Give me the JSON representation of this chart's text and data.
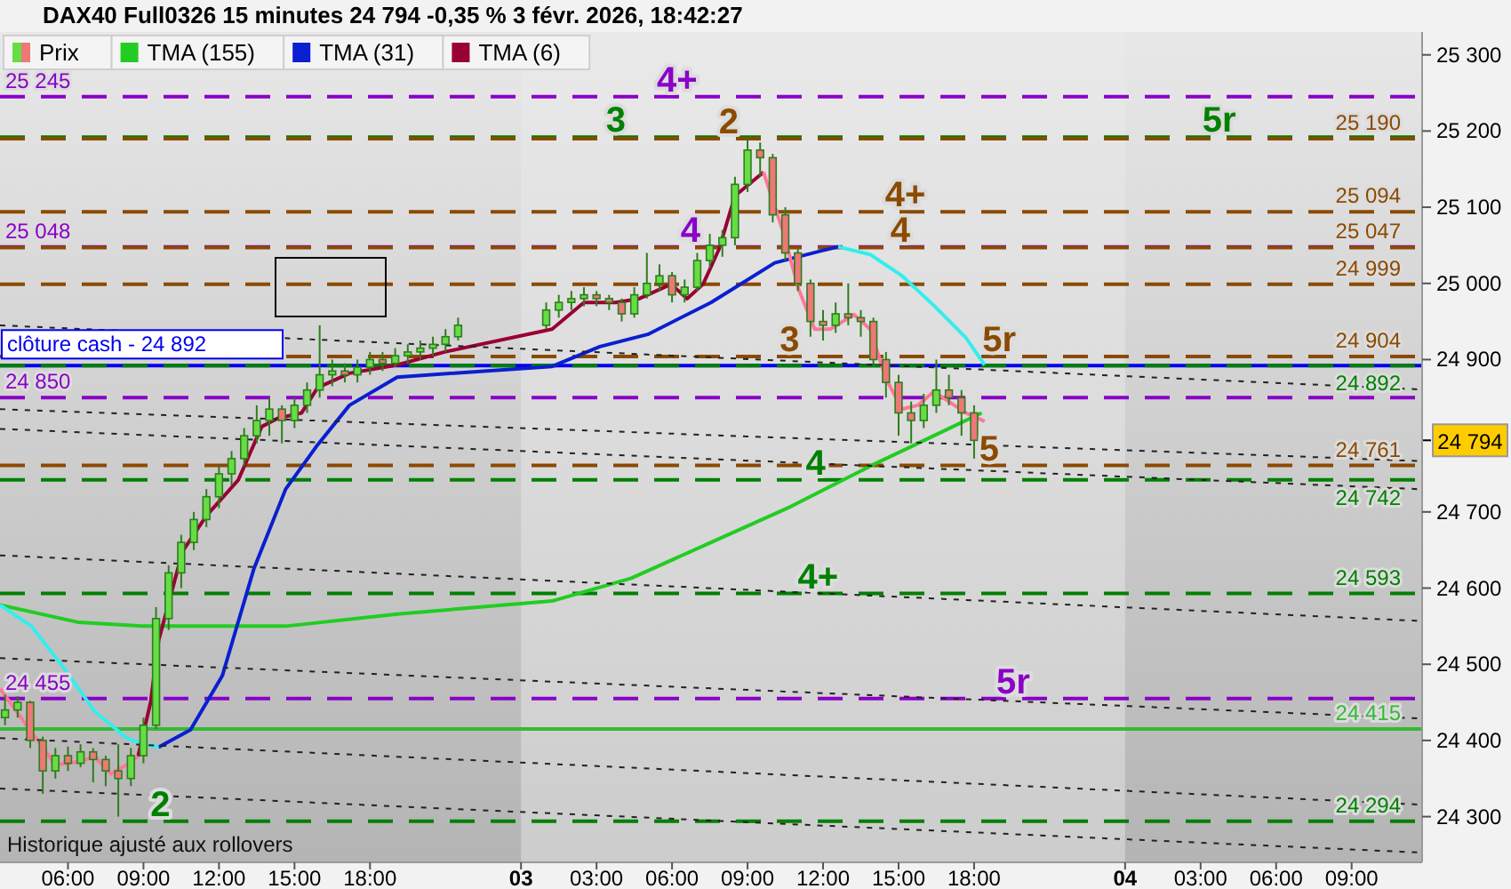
{
  "chart_data": {
    "type": "candlestick",
    "title": "DAX40 Full0326 15 minutes 24 794 -0,35 % 3 févr. 2026, 18:42:27",
    "legend": "top left",
    "marker": "none",
    "grid": false,
    "xlim": [
      "2026-02-02T03:18",
      "2026-02-04T11:48"
    ],
    "ylim": [
      24240,
      25330
    ],
    "xticks": [
      {
        "value": "2026-02-02T06:00",
        "label": "06:00"
      },
      {
        "value": "2026-02-02T09:00",
        "label": "09:00"
      },
      {
        "value": "2026-02-02T12:00",
        "label": "12:00"
      },
      {
        "value": "2026-02-02T15:00",
        "label": "15:00"
      },
      {
        "value": "2026-02-02T18:00",
        "label": "18:00"
      },
      {
        "value": "2026-02-03",
        "label": "03"
      },
      {
        "value": "2026-02-03T03:00",
        "label": "03:00"
      },
      {
        "value": "2026-02-03T06:00",
        "label": "06:00"
      },
      {
        "value": "2026-02-03T09:00",
        "label": "09:00"
      },
      {
        "value": "2026-02-03T12:00",
        "label": "12:00"
      },
      {
        "value": "2026-02-03T15:00",
        "label": "15:00"
      },
      {
        "value": "2026-02-03T18:00",
        "label": "18:00"
      },
      {
        "value": "2026-02-04",
        "label": "04"
      },
      {
        "value": "2026-02-04T03:00",
        "label": "03:00"
      },
      {
        "value": "2026-02-04T06:00",
        "label": "06:00"
      },
      {
        "value": "2026-02-04T09:00",
        "label": "09:00"
      }
    ],
    "yticks": [
      {
        "value": 24300,
        "label": "24 300"
      },
      {
        "value": 24400,
        "label": "24 400"
      },
      {
        "value": 24500,
        "label": "24 500"
      },
      {
        "value": 24600,
        "label": "24 600"
      },
      {
        "value": 24700,
        "label": "24 700"
      },
      {
        "value": 24900,
        "label": "24 900"
      },
      {
        "value": 25000,
        "label": "25 000"
      },
      {
        "value": 25100,
        "label": "25 100"
      },
      {
        "value": 25200,
        "label": "25 200"
      },
      {
        "value": 25300,
        "label": "25 300"
      }
    ],
    "bands": [
      {
        "axis": "x",
        "from": "2026-02-03",
        "to": "2026-02-04",
        "color": "#ececec"
      }
    ],
    "ref_lines": [
      {
        "axis": "y",
        "value": 25245,
        "label": "25 245",
        "color": "#8a00c8",
        "line_style": "dashed"
      },
      {
        "axis": "y",
        "value": 25048,
        "label": "25 048",
        "color": "#8a00c8",
        "line_style": "dashed"
      },
      {
        "axis": "y",
        "value": 24850,
        "label": "24 850",
        "color": "#8a00c8",
        "line_style": "dashed"
      },
      {
        "axis": "y",
        "value": 24455,
        "label": "24 455",
        "color": "#8a00c8",
        "line_style": "dashed"
      },
      {
        "axis": "y",
        "value": 24892,
        "label": "clôture cash -  24 892",
        "color": "#0000ee",
        "line_style": "solid"
      },
      {
        "axis": "y",
        "value": 24415,
        "label": "24 415",
        "color": "#33bb33",
        "line_style": "solid"
      },
      {
        "axis": "y",
        "value": 25192,
        "color": "#008000",
        "line_style": "dashed"
      },
      {
        "axis": "y",
        "value": 24892,
        "label": "24 892",
        "color": "#008000",
        "line_style": "dashed"
      },
      {
        "axis": "y",
        "value": 24742,
        "label": "24 742",
        "color": "#008000",
        "line_style": "dashed"
      },
      {
        "axis": "y",
        "value": 24593,
        "label": "24 593",
        "color": "#008000",
        "line_style": "dashed"
      },
      {
        "axis": "y",
        "value": 24294,
        "label": "24 294",
        "color": "#008000",
        "line_style": "dashed"
      },
      {
        "axis": "y",
        "value": 25190,
        "label": "25 190",
        "color": "#8b4a00",
        "line_style": "dashed"
      },
      {
        "axis": "y",
        "value": 25094,
        "label": "25 094",
        "color": "#8b4a00",
        "line_style": "dashed"
      },
      {
        "axis": "y",
        "value": 25047,
        "label": "25 047",
        "color": "#8b4a00",
        "line_style": "dashed"
      },
      {
        "axis": "y",
        "value": 24999,
        "label": "24 999",
        "color": "#8b4a00",
        "line_style": "dashed"
      },
      {
        "axis": "y",
        "value": 24904,
        "label": "24 904",
        "color": "#8b4a00",
        "line_style": "dashed"
      },
      {
        "axis": "y",
        "value": 24761,
        "label": "24 761",
        "color": "#8b4a00",
        "line_style": "dashed"
      }
    ],
    "annotations": [
      {
        "text": "4+",
        "x": "2026-02-03T06:12",
        "y": 25245
      },
      {
        "text": "3",
        "x": "2026-02-03T03:46",
        "y": 25192
      },
      {
        "text": "2",
        "x": "2026-02-03T08:15",
        "y": 25190
      },
      {
        "text": "5r",
        "x": "2026-02-04T03:44",
        "y": 25192
      },
      {
        "text": "4+",
        "x": "2026-02-03T15:16",
        "y": 25094
      },
      {
        "text": "4",
        "x": "2026-02-03T15:04",
        "y": 25047
      },
      {
        "text": "4",
        "x": "2026-02-03T06:44",
        "y": 25048
      },
      {
        "text": "3",
        "x": "2026-02-03T10:40",
        "y": 24904
      },
      {
        "text": "5r",
        "x": "2026-02-03T19:00",
        "y": 24904
      },
      {
        "text": "4",
        "x": "2026-02-03T11:42",
        "y": 24742
      },
      {
        "text": "5",
        "x": "2026-02-03T18:36",
        "y": 24761
      },
      {
        "text": "4+",
        "x": "2026-02-03T11:48",
        "y": 24593
      },
      {
        "text": "5r",
        "x": "2026-02-03T19:33",
        "y": 24455
      },
      {
        "text": "2",
        "x": "2026-02-02T09:40",
        "y": 24294
      },
      "24 794",
      "Historique ajusté aux rollovers"
    ],
    "series": [
      {
        "type": "candlestick",
        "name": "Prix",
        "color": "#2e7d1e",
        "x": [
          "2026-02-02T03:30",
          "2026-02-02T04:00",
          "2026-02-02T04:30",
          "2026-02-02T05:00",
          "2026-02-02T05:30",
          "2026-02-02T06:00",
          "2026-02-02T06:30",
          "2026-02-02T07:00",
          "2026-02-02T07:30",
          "2026-02-02T08:00",
          "2026-02-02T08:30",
          "2026-02-02T09:00",
          "2026-02-02T09:30",
          "2026-02-02T10:00",
          "2026-02-02T10:30",
          "2026-02-02T11:00",
          "2026-02-02T11:30",
          "2026-02-02T12:00",
          "2026-02-02T12:30",
          "2026-02-02T13:00",
          "2026-02-02T13:30",
          "2026-02-02T14:00",
          "2026-02-02T14:30",
          "2026-02-02T15:00",
          "2026-02-02T15:30",
          "2026-02-02T16:00",
          "2026-02-02T16:30",
          "2026-02-02T17:00",
          "2026-02-02T17:30",
          "2026-02-02T18:00",
          "2026-02-02T18:30",
          "2026-02-02T19:00",
          "2026-02-02T19:30",
          "2026-02-02T20:00",
          "2026-02-02T20:30",
          "2026-02-02T21:00",
          "2026-02-02T21:30",
          "2026-02-03T01:00",
          "2026-02-03T01:30",
          "2026-02-03T02:00",
          "2026-02-03T02:30",
          "2026-02-03T03:00",
          "2026-02-03T03:30",
          "2026-02-03T04:00",
          "2026-02-03T04:30",
          "2026-02-03T05:00",
          "2026-02-03T05:30",
          "2026-02-03T06:00",
          "2026-02-03T06:30",
          "2026-02-03T07:00",
          "2026-02-03T07:30",
          "2026-02-03T08:00",
          "2026-02-03T08:30",
          "2026-02-03T09:00",
          "2026-02-03T09:30",
          "2026-02-03T10:00",
          "2026-02-03T10:30",
          "2026-02-03T11:00",
          "2026-02-03T11:30",
          "2026-02-03T12:00",
          "2026-02-03T12:30",
          "2026-02-03T13:00",
          "2026-02-03T13:30",
          "2026-02-03T14:00",
          "2026-02-03T14:30",
          "2026-02-03T15:00",
          "2026-02-03T15:30",
          "2026-02-03T16:00",
          "2026-02-03T16:30",
          "2026-02-03T17:00",
          "2026-02-03T17:30",
          "2026-02-03T18:00"
        ],
        "ohlc": [
          [
            24430,
            24460,
            24420,
            24440
          ],
          [
            24440,
            24458,
            24430,
            24450
          ],
          [
            24450,
            24452,
            24390,
            24400
          ],
          [
            24400,
            24405,
            24330,
            24360
          ],
          [
            24360,
            24390,
            24350,
            24380
          ],
          [
            24380,
            24392,
            24360,
            24370
          ],
          [
            24370,
            24395,
            24365,
            24385
          ],
          [
            24385,
            24390,
            24345,
            24375
          ],
          [
            24375,
            24380,
            24340,
            24360
          ],
          [
            24360,
            24395,
            24300,
            24350
          ],
          [
            24350,
            24390,
            24340,
            24380
          ],
          [
            24380,
            24430,
            24370,
            24420
          ],
          [
            24420,
            24575,
            24415,
            24560
          ],
          [
            24560,
            24630,
            24545,
            24620
          ],
          [
            24620,
            24670,
            24600,
            24660
          ],
          [
            24660,
            24700,
            24650,
            24690
          ],
          [
            24690,
            24730,
            24680,
            24720
          ],
          [
            24720,
            24760,
            24705,
            24750
          ],
          [
            24750,
            24780,
            24735,
            24770
          ],
          [
            24770,
            24810,
            24760,
            24800
          ],
          [
            24800,
            24840,
            24790,
            24820
          ],
          [
            24820,
            24850,
            24800,
            24835
          ],
          [
            24835,
            24840,
            24790,
            24820
          ],
          [
            24820,
            24850,
            24810,
            24840
          ],
          [
            24840,
            24870,
            24830,
            24860
          ],
          [
            24860,
            24945,
            24850,
            24880
          ],
          [
            24880,
            24900,
            24865,
            24885
          ],
          [
            24885,
            24895,
            24870,
            24880
          ],
          [
            24880,
            24900,
            24870,
            24890
          ],
          [
            24890,
            24910,
            24880,
            24900
          ],
          [
            24900,
            24910,
            24885,
            24895
          ],
          [
            24895,
            24915,
            24890,
            24905
          ],
          [
            24905,
            24920,
            24895,
            24910
          ],
          [
            24910,
            24925,
            24900,
            24915
          ],
          [
            24915,
            24930,
            24905,
            24920
          ],
          [
            24920,
            24940,
            24910,
            24930
          ],
          [
            24930,
            24955,
            24925,
            24945
          ],
          [
            24945,
            24975,
            24940,
            24965
          ],
          [
            24965,
            24985,
            24955,
            24975
          ],
          [
            24975,
            24990,
            24965,
            24980
          ],
          [
            24980,
            24995,
            24970,
            24985
          ],
          [
            24985,
            24990,
            24970,
            24980
          ],
          [
            24980,
            24985,
            24965,
            24975
          ],
          [
            24975,
            24980,
            24950,
            24960
          ],
          [
            24960,
            24995,
            24955,
            24985
          ],
          [
            24985,
            25040,
            24980,
            25000
          ],
          [
            25000,
            25025,
            24990,
            25010
          ],
          [
            25010,
            25015,
            24975,
            24985
          ],
          [
            24985,
            25005,
            24975,
            24995
          ],
          [
            24995,
            25040,
            24990,
            25030
          ],
          [
            25030,
            25065,
            25020,
            25050
          ],
          [
            25050,
            25070,
            25035,
            25060
          ],
          [
            25060,
            25140,
            25050,
            25130
          ],
          [
            25130,
            25190,
            25120,
            25175
          ],
          [
            25175,
            25185,
            25140,
            25165
          ],
          [
            25165,
            25170,
            25080,
            25090
          ],
          [
            25090,
            25100,
            25030,
            25040
          ],
          [
            25040,
            25045,
            24990,
            25000
          ],
          [
            25000,
            25005,
            24930,
            24950
          ],
          [
            24950,
            24965,
            24925,
            24945
          ],
          [
            24945,
            24975,
            24935,
            24960
          ],
          [
            24960,
            25000,
            24945,
            24955
          ],
          [
            24955,
            24965,
            24930,
            24950
          ],
          [
            24950,
            24955,
            24890,
            24900
          ],
          [
            24900,
            24910,
            24850,
            24870
          ],
          [
            24870,
            24880,
            24800,
            24830
          ],
          [
            24830,
            24845,
            24790,
            24820
          ],
          [
            24820,
            24855,
            24810,
            24840
          ],
          [
            24840,
            24900,
            24830,
            24860
          ],
          [
            24860,
            24880,
            24840,
            24850
          ],
          [
            24850,
            24860,
            24800,
            24830
          ],
          [
            24830,
            24840,
            24770,
            24794
          ]
        ]
      },
      {
        "type": "line",
        "name": "TMA (155)",
        "color": "#22cc22",
        "x": [
          "2026-02-02T03:18",
          "2026-02-02T06:26",
          "2026-02-02T08:58",
          "2026-02-02T14:39",
          "2026-02-02T19:05",
          "2026-02-03T01:14",
          "2026-02-03T04:23",
          "2026-02-03T07:33",
          "2026-02-03T10:43",
          "2026-02-03T13:52",
          "2026-02-03T16:24",
          "2026-02-03T18:18"
        ],
        "values": [
          24578,
          24555,
          24550,
          24550,
          24566,
          24583,
          24613,
          24660,
          24707,
          24760,
          24800,
          24830
        ]
      },
      {
        "type": "line",
        "name": "TMA (31)",
        "color": "#0a1fd0",
        "x": [
          "2026-02-02T09:36",
          "2026-02-02T10:52",
          "2026-02-02T12:08",
          "2026-02-02T13:23",
          "2026-02-02T14:39",
          "2026-02-02T15:55",
          "2026-02-02T17:11",
          "2026-02-02T19:05",
          "2026-02-03T01:14",
          "2026-02-03T03:08",
          "2026-02-03T05:02",
          "2026-02-03T07:33",
          "2026-02-03T10:05",
          "2026-02-03T11:58",
          "2026-02-03T12:36"
        ],
        "values": [
          24391,
          24414,
          24485,
          24625,
          24730,
          24788,
          24840,
          24877,
          24891,
          24917,
          24933,
          24975,
          25027,
          25043,
          25048
        ]
      },
      {
        "type": "line",
        "color": "#33eeee",
        "x": [
          "2026-02-03T12:36",
          "2026-02-03T13:52",
          "2026-02-03T15:08",
          "2026-02-03T16:24",
          "2026-02-03T17:40",
          "2026-02-03T18:25"
        ],
        "values": [
          25048,
          25038,
          25010,
          24971,
          24929,
          24893
        ]
      },
      {
        "type": "line",
        "color": "#33eeee",
        "x": [
          "2026-02-02T03:18",
          "2026-02-02T04:33",
          "2026-02-02T05:49",
          "2026-02-02T07:04",
          "2026-02-02T08:20",
          "2026-02-02T08:58",
          "2026-02-02T09:36"
        ],
        "values": [
          24578,
          24550,
          24496,
          24438,
          24403,
          24396,
          24391
        ]
      },
      {
        "type": "line",
        "name": "TMA (6)",
        "color": "#990033",
        "x": [
          "2026-02-02T08:47",
          "2026-02-02T09:17",
          "2026-02-02T09:36",
          "2026-02-02T10:33",
          "2026-02-02T11:30",
          "2026-02-02T12:46",
          "2026-02-02T13:42",
          "2026-02-02T14:20",
          "2026-02-02T15:17",
          "2026-02-02T15:55",
          "2026-02-02T17:11",
          "2026-02-02T19:05",
          "2026-02-02T20:58",
          "2026-02-03T01:14",
          "2026-02-03T02:30",
          "2026-02-03T03:46",
          "2026-02-03T04:42",
          "2026-02-03T05:58",
          "2026-02-03T06:36",
          "2026-02-03T07:14",
          "2026-02-03T07:52",
          "2026-02-03T08:30",
          "2026-02-03T09:38"
        ],
        "values": [
          24379,
          24450,
          24531,
          24648,
          24695,
          24742,
          24812,
          24823,
          24830,
          24863,
          24882,
          24893,
          24910,
          24940,
          24975,
          24975,
          24980,
          24999,
          24980,
          24999,
          25045,
          25115,
          25146
        ]
      },
      {
        "type": "line",
        "color": "#ff7799",
        "x": [
          "2026-02-02T03:18",
          "2026-02-02T05:30",
          "2026-02-02T06:26",
          "2026-02-02T07:04",
          "2026-02-02T07:42",
          "2026-02-02T08:20",
          "2026-02-02T08:47"
        ],
        "values": [
          24468,
          24368,
          24372,
          24379,
          24356,
          24368,
          24379
        ]
      },
      {
        "type": "line",
        "color": "#ff7799",
        "x": [
          "2026-02-03T09:38",
          "2026-02-03T10:24",
          "2026-02-03T11:02",
          "2026-02-03T11:40",
          "2026-02-03T12:17",
          "2026-02-03T13:14",
          "2026-02-03T13:52",
          "2026-02-03T14:30",
          "2026-02-03T15:08",
          "2026-02-03T15:46",
          "2026-02-03T16:24",
          "2026-02-03T17:02",
          "2026-02-03T17:40",
          "2026-02-03T18:25"
        ],
        "values": [
          25146,
          25069,
          24992,
          24940,
          24940,
          24959,
          24940,
          24875,
          24835,
          24840,
          24858,
          24844,
          24830,
          24819
        ]
      },
      {
        "type": "line",
        "color": "#222222",
        "line_style": "dotted",
        "x": [
          "2026-02-02T03:18",
          "2026-02-04T11:36"
        ],
        "values": [
          24945,
          24861
        ]
      },
      {
        "type": "line",
        "color": "#222222",
        "line_style": "dotted",
        "x": [
          "2026-02-02T03:18",
          "2026-02-04T11:36"
        ],
        "values": [
          24835,
          24767
        ]
      },
      {
        "type": "line",
        "color": "#222222",
        "line_style": "dotted",
        "x": [
          "2026-02-02T03:18",
          "2026-02-04T11:36"
        ],
        "values": [
          24809,
          24730
        ]
      },
      {
        "type": "line",
        "color": "#222222",
        "line_style": "dotted",
        "x": [
          "2026-02-02T03:18",
          "2026-02-04T11:36"
        ],
        "values": [
          24643,
          24557
        ]
      },
      {
        "type": "line",
        "color": "#222222",
        "line_style": "dotted",
        "x": [
          "2026-02-02T03:18",
          "2026-02-04T11:36"
        ],
        "values": [
          24508,
          24429
        ]
      },
      {
        "type": "line",
        "color": "#222222",
        "line_style": "dotted",
        "x": [
          "2026-02-02T03:18",
          "2026-02-04T11:36"
        ],
        "values": [
          24403,
          24316
        ]
      },
      {
        "type": "line",
        "color": "#222222",
        "line_style": "dotted",
        "x": [
          "2026-02-02T03:18",
          "2026-02-04T11:36"
        ],
        "values": [
          24337,
          24253
        ]
      }
    ]
  }
}
